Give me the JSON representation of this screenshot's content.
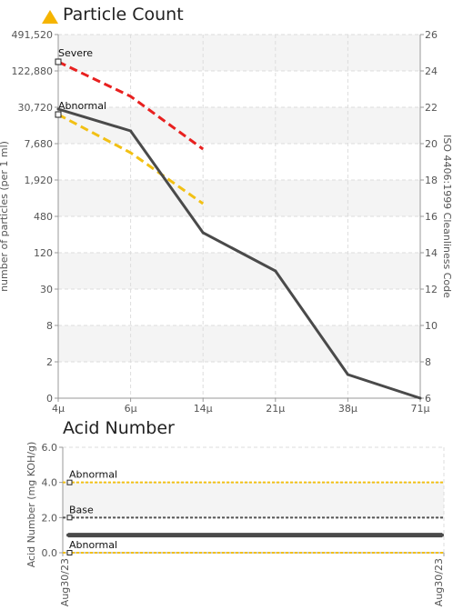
{
  "colors": {
    "series": "#4a4a4a",
    "severe": "#e8201f",
    "abnormal": "#f2c014",
    "base": "#555555",
    "warning": "#f5b400",
    "grid": "#dddddd",
    "band": "#f4f4f4"
  },
  "icons": {
    "title_icon": "warning-triangle-icon"
  },
  "chart_data": [
    {
      "type": "line",
      "title": "Particle Count",
      "xlabel": "",
      "ylabel": "number of particles (per 1 ml)",
      "y2label": "ISO 4406:1999 Cleanliness Code",
      "categories": [
        "4μ",
        "6μ",
        "14μ",
        "21μ",
        "38μ",
        "71μ"
      ],
      "y_ticks": [
        "491,520",
        "122,880",
        "30,720",
        "7,680",
        "1,920",
        "480",
        "120",
        "30",
        "8",
        "2",
        "0"
      ],
      "y2_ticks": [
        "26",
        "24",
        "22",
        "20",
        "18",
        "16",
        "14",
        "12",
        "10",
        "8",
        "6"
      ],
      "y2lim": [
        6,
        26
      ],
      "grid": true,
      "series": [
        {
          "values": [
            21.9,
            20.7,
            15.1,
            13.0,
            7.3,
            6.0
          ]
        }
      ],
      "limits": [
        {
          "label": "Severe",
          "values": [
            24.5,
            22.6,
            19.7
          ]
        },
        {
          "label": "Abnormal",
          "values": [
            21.6,
            19.5,
            16.7
          ]
        }
      ]
    },
    {
      "type": "line",
      "title": "Acid Number",
      "xlabel": "",
      "ylabel": "Acid Number (mg KOH/g)",
      "ylim": [
        0,
        6
      ],
      "y_ticks": [
        "6.0",
        "4.0",
        "2.0",
        "0.0"
      ],
      "x_ticks": [
        "Aug30/23",
        "Aug30/23"
      ],
      "grid": true,
      "series": [
        {
          "values": [
            1.0,
            1.0
          ]
        }
      ],
      "limits": [
        {
          "label": "Abnormal",
          "value": 4.0,
          "style": "abnormal"
        },
        {
          "label": "Base",
          "value": 2.0,
          "style": "base"
        },
        {
          "label": "Abnormal",
          "value": 0.0,
          "style": "abnormal"
        }
      ]
    }
  ]
}
